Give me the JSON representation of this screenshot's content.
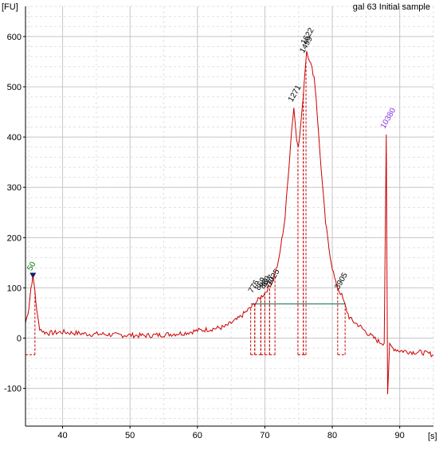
{
  "chart_data": {
    "type": "line",
    "title": "gal 63 Initial sample",
    "ylabel": "[FU]",
    "xlabel": "[s]",
    "xlim": [
      34.5,
      95.0
    ],
    "ylim": [
      -175,
      660
    ],
    "grid": true,
    "x_ticks": [
      40,
      50,
      60,
      70,
      80,
      90
    ],
    "x_tick_labels": [
      "40",
      "50",
      "60",
      "70",
      "80",
      "90"
    ],
    "y_ticks": [
      -100,
      0,
      100,
      200,
      300,
      400,
      500,
      600
    ],
    "y_tick_labels": [
      "-100",
      "0",
      "100",
      "200",
      "300",
      "400",
      "500",
      "600"
    ],
    "colors": {
      "trace": "#cc0000",
      "grid": "#c8c8c8",
      "axis": "#000000",
      "background": "#ffffff",
      "lower_marker": "#008000",
      "upper_marker": "#8833dd",
      "smear_baseline": "#006b55"
    },
    "series": [
      {
        "values": [
          [
            34.5,
            30
          ],
          [
            35.0,
            60
          ],
          [
            35.3,
            100
          ],
          [
            35.6,
            122
          ],
          [
            35.9,
            95
          ],
          [
            36.2,
            50
          ],
          [
            36.6,
            20
          ],
          [
            37.2,
            12
          ],
          [
            38.0,
            10
          ],
          [
            40.0,
            12
          ],
          [
            42.0,
            10
          ],
          [
            44.0,
            8
          ],
          [
            46.0,
            8
          ],
          [
            48.0,
            6
          ],
          [
            50.0,
            6
          ],
          [
            52.0,
            5
          ],
          [
            54.0,
            6
          ],
          [
            56.0,
            8
          ],
          [
            58.0,
            10
          ],
          [
            60.0,
            15
          ],
          [
            62.0,
            18
          ],
          [
            63.0,
            20
          ],
          [
            64.0,
            22
          ],
          [
            65.0,
            30
          ],
          [
            66.0,
            38
          ],
          [
            67.0,
            50
          ],
          [
            68.0,
            62
          ],
          [
            69.0,
            76
          ],
          [
            70.0,
            90
          ],
          [
            71.0,
            110
          ],
          [
            72.0,
            150
          ],
          [
            73.0,
            240
          ],
          [
            73.5,
            330
          ],
          [
            74.0,
            420
          ],
          [
            74.3,
            458
          ],
          [
            74.7,
            400
          ],
          [
            75.0,
            380
          ],
          [
            75.5,
            450
          ],
          [
            76.0,
            540
          ],
          [
            76.2,
            572
          ],
          [
            76.6,
            555
          ],
          [
            77.0,
            535
          ],
          [
            77.3,
            520
          ],
          [
            77.6,
            480
          ],
          [
            78.0,
            400
          ],
          [
            78.5,
            310
          ],
          [
            79.0,
            230
          ],
          [
            79.5,
            180
          ],
          [
            80.0,
            140
          ],
          [
            80.5,
            110
          ],
          [
            81.0,
            95
          ],
          [
            81.4,
            85
          ],
          [
            82.0,
            60
          ],
          [
            82.5,
            42
          ],
          [
            83.0,
            34
          ],
          [
            84.0,
            25
          ],
          [
            85.0,
            12
          ],
          [
            86.0,
            2
          ],
          [
            87.0,
            -8
          ],
          [
            87.7,
            -10
          ],
          [
            88.0,
            405
          ],
          [
            88.2,
            -110
          ],
          [
            88.5,
            -15
          ],
          [
            89.0,
            -20
          ],
          [
            90.0,
            -25
          ],
          [
            91.0,
            -26
          ],
          [
            92.0,
            -28
          ],
          [
            93.0,
            -28
          ],
          [
            94.0,
            -30
          ],
          [
            95.0,
            -33
          ]
        ]
      }
    ],
    "peak_labels": [
      {
        "text": "50",
        "x": 35.6,
        "y": 122,
        "color": "#008000"
      },
      {
        "text": "1271",
        "x": 74.3,
        "y": 458,
        "color": "#000000"
      },
      {
        "text": "1622",
        "x": 76.2,
        "y": 572,
        "color": "#000000"
      },
      {
        "text": "1499",
        "x": 76.0,
        "y": 555,
        "color": "#000000"
      },
      {
        "text": "10380",
        "x": 88.0,
        "y": 405,
        "color": "#8833dd"
      },
      {
        "text": "776",
        "x": 68.4,
        "y": 78,
        "color": "#000000"
      },
      {
        "text": "869",
        "x": 69.4,
        "y": 83,
        "color": "#000000"
      },
      {
        "text": "889",
        "x": 70.1,
        "y": 86,
        "color": "#000000"
      },
      {
        "text": "917",
        "x": 70.6,
        "y": 88,
        "color": "#000000"
      },
      {
        "text": "1025",
        "x": 71.1,
        "y": 92,
        "color": "#000000"
      },
      {
        "text": "3905",
        "x": 81.2,
        "y": 85,
        "color": "#000000"
      }
    ],
    "markers": {
      "lower": {
        "x": 35.6,
        "y": 122
      },
      "smear_baseline": {
        "x_start": 67.9,
        "x_end": 82.0,
        "y": 68
      }
    },
    "region_boundaries": [
      {
        "x_start": 34.5,
        "x_end": 35.9
      },
      {
        "x_start": 67.9,
        "x_end": 68.5
      },
      {
        "x_start": 68.5,
        "x_end": 69.4
      },
      {
        "x_start": 69.4,
        "x_end": 70.0
      },
      {
        "x_start": 70.0,
        "x_end": 70.7
      },
      {
        "x_start": 70.7,
        "x_end": 71.5
      },
      {
        "x_start": 74.9,
        "x_end": 75.7
      },
      {
        "x_start": 75.7,
        "x_end": 76.1
      },
      {
        "x_start": 80.8,
        "x_end": 81.9
      }
    ]
  }
}
